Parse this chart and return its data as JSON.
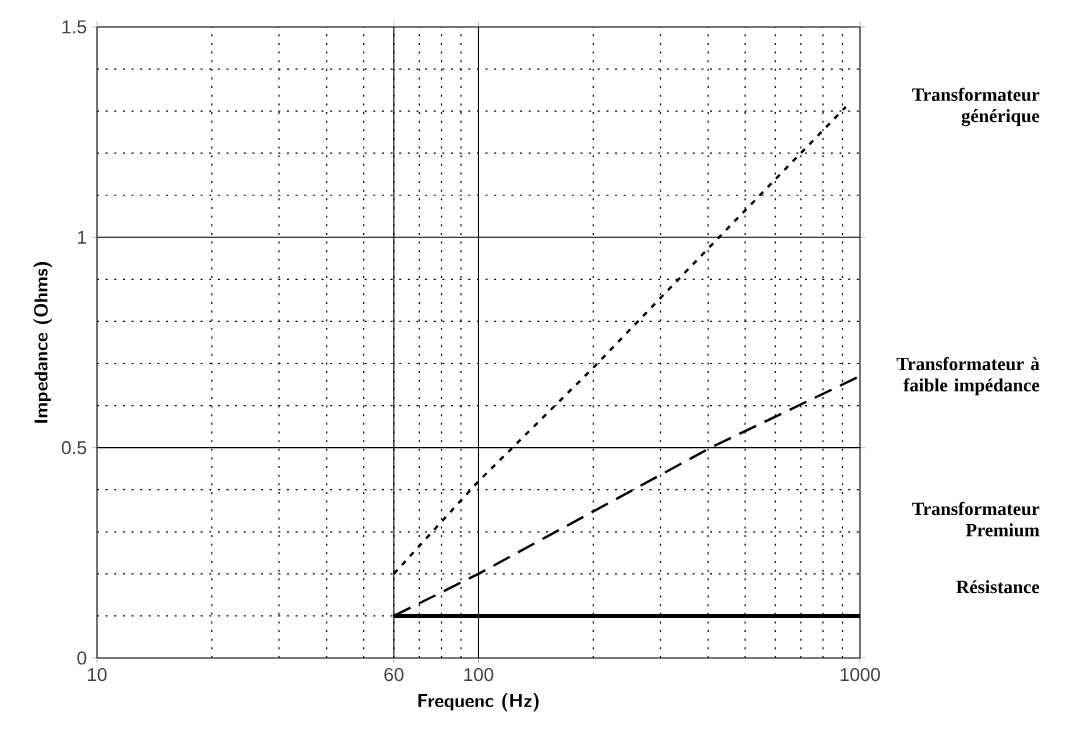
{
  "chart_data": {
    "type": "line",
    "xlabel": "Frequenc   (Hz)",
    "ylabel": "Impedance (Ohms)",
    "log": "x",
    "xlim": [
      10,
      1000
    ],
    "xticks": [
      10,
      60,
      100,
      1000
    ],
    "ylim": [
      0,
      1.5
    ],
    "yticks": [
      0,
      0.5,
      1,
      1.5
    ],
    "grid": true,
    "legend": false,
    "marker": "none",
    "series": [
      {
        "name": "Transformateur générique",
        "color": "#000000",
        "line_style": "dotted",
        "x": [
          60,
          100,
          200,
          427,
          918
        ],
        "values": [
          0.2,
          0.42,
          0.69,
          1.0,
          1.31
        ]
      },
      {
        "name": "Transformateur à faible impédance",
        "color": "#000000",
        "line_style": "dashed",
        "x": [
          60,
          100,
          406,
          1000
        ],
        "values": [
          0.1,
          0.2,
          0.5,
          0.67
        ]
      },
      {
        "name": "Résistance",
        "color": "#000000",
        "line_style": "solid",
        "x": [
          60,
          1000
        ],
        "values": [
          0.1,
          0.1
        ]
      }
    ],
    "annotations": [
      "Transformateur Premium"
    ]
  }
}
